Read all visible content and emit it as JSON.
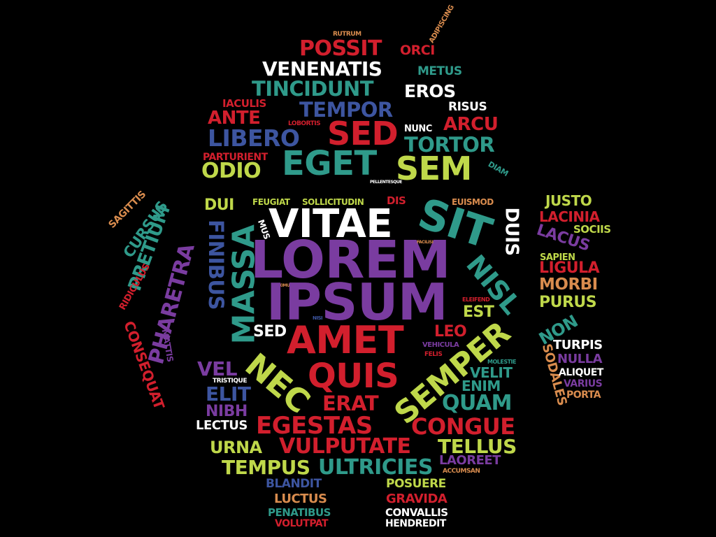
{
  "colors": {
    "red": "#d21f2d",
    "teal": "#2f9a8a",
    "white": "#ffffff",
    "blue": "#3d55a0",
    "lime": "#bfd84a",
    "purple": "#7a3ca0",
    "orange": "#d98c4e"
  },
  "words": [
    {
      "text": "ADIPISCING",
      "color": "orange"
    },
    {
      "text": "RUTRUM",
      "color": "orange"
    },
    {
      "text": "POSSIT",
      "color": "red"
    },
    {
      "text": "ORCI",
      "color": "red"
    },
    {
      "text": "VENENATIS",
      "color": "white"
    },
    {
      "text": "METUS",
      "color": "teal"
    },
    {
      "text": "TINCIDUNT",
      "color": "teal"
    },
    {
      "text": "EROS",
      "color": "white"
    },
    {
      "text": "IACULIS",
      "color": "red"
    },
    {
      "text": "TEMPOR",
      "color": "blue"
    },
    {
      "text": "RISUS",
      "color": "white"
    },
    {
      "text": "ANTE",
      "color": "red"
    },
    {
      "text": "LOBORTIS",
      "color": "red"
    },
    {
      "text": "SED",
      "color": "red"
    },
    {
      "text": "NUNC",
      "color": "white"
    },
    {
      "text": "ARCU",
      "color": "red"
    },
    {
      "text": "LIBERO",
      "color": "blue"
    },
    {
      "text": "TORTOR",
      "color": "teal"
    },
    {
      "text": "PARTURIENT",
      "color": "red"
    },
    {
      "text": "EGET",
      "color": "teal"
    },
    {
      "text": "SEM",
      "color": "lime"
    },
    {
      "text": "ODIO",
      "color": "lime"
    },
    {
      "text": "DIAM",
      "color": "teal"
    },
    {
      "text": "PELLENTESQUE",
      "color": "white"
    },
    {
      "text": "SAGITTIS",
      "color": "orange"
    },
    {
      "text": "CURSUS",
      "color": "teal"
    },
    {
      "text": "PRETIUM",
      "color": "teal"
    },
    {
      "text": "DUI",
      "color": "lime"
    },
    {
      "text": "FEUGIAT",
      "color": "lime"
    },
    {
      "text": "SOLLICITUDIN",
      "color": "lime"
    },
    {
      "text": "DIS",
      "color": "red"
    },
    {
      "text": "EUISMOD",
      "color": "orange"
    },
    {
      "text": "JUSTO",
      "color": "lime"
    },
    {
      "text": "LACINIA",
      "color": "red"
    },
    {
      "text": "VITAE",
      "color": "white"
    },
    {
      "text": "SIT",
      "color": "teal"
    },
    {
      "text": "DUIS",
      "color": "white"
    },
    {
      "text": "LACUS",
      "color": "purple"
    },
    {
      "text": "SOCIIS",
      "color": "lime"
    },
    {
      "text": "FINIBUS",
      "color": "blue"
    },
    {
      "text": "MASSA",
      "color": "teal"
    },
    {
      "text": "MUS",
      "color": "white"
    },
    {
      "text": "PHARETRA",
      "color": "purple"
    },
    {
      "text": "RIDICULUS",
      "color": "red"
    },
    {
      "text": "LOREM",
      "color": "purple"
    },
    {
      "text": "FACILISI",
      "color": "orange"
    },
    {
      "text": "NISL",
      "color": "teal"
    },
    {
      "text": "SAPIEN",
      "color": "lime"
    },
    {
      "text": "LIGULA",
      "color": "red"
    },
    {
      "text": "MORBI",
      "color": "orange"
    },
    {
      "text": "MAXIMUS",
      "color": "orange"
    },
    {
      "text": "IPSUM",
      "color": "purple"
    },
    {
      "text": "PURUS",
      "color": "lime"
    },
    {
      "text": "ELEIFEND",
      "color": "red"
    },
    {
      "text": "EST",
      "color": "lime"
    },
    {
      "text": "NISI",
      "color": "blue"
    },
    {
      "text": "NON",
      "color": "teal"
    },
    {
      "text": "SED",
      "color": "white"
    },
    {
      "text": "AMET",
      "color": "red"
    },
    {
      "text": "LEO",
      "color": "red"
    },
    {
      "text": "MATTIS",
      "color": "purple"
    },
    {
      "text": "CONSEQUAT",
      "color": "red"
    },
    {
      "text": "TURPIS",
      "color": "white"
    },
    {
      "text": "VEHICULA",
      "color": "purple"
    },
    {
      "text": "FELIS",
      "color": "red"
    },
    {
      "text": "NULLA",
      "color": "purple"
    },
    {
      "text": "SODALES",
      "color": "orange"
    },
    {
      "text": "SEMPER",
      "color": "lime"
    },
    {
      "text": "MOLESTIE",
      "color": "teal"
    },
    {
      "text": "VEL",
      "color": "purple"
    },
    {
      "text": "NEC",
      "color": "lime"
    },
    {
      "text": "QUIS",
      "color": "red"
    },
    {
      "text": "VELIT",
      "color": "teal"
    },
    {
      "text": "ALIQUET",
      "color": "white"
    },
    {
      "text": "TRISTIQUE",
      "color": "white"
    },
    {
      "text": "ENIM",
      "color": "teal"
    },
    {
      "text": "VARIUS",
      "color": "purple"
    },
    {
      "text": "ELIT",
      "color": "blue"
    },
    {
      "text": "PORTA",
      "color": "orange"
    },
    {
      "text": "ERAT",
      "color": "red"
    },
    {
      "text": "QUAM",
      "color": "teal"
    },
    {
      "text": "NIBH",
      "color": "purple"
    },
    {
      "text": "LECTUS",
      "color": "white"
    },
    {
      "text": "EGESTAS",
      "color": "red"
    },
    {
      "text": "CONGUE",
      "color": "red"
    },
    {
      "text": "URNA",
      "color": "lime"
    },
    {
      "text": "VULPUTATE",
      "color": "red"
    },
    {
      "text": "TELLUS",
      "color": "lime"
    },
    {
      "text": "TEMPUS",
      "color": "lime"
    },
    {
      "text": "ULTRICIES",
      "color": "teal"
    },
    {
      "text": "LAOREET",
      "color": "purple"
    },
    {
      "text": "ACCUMSAN",
      "color": "orange"
    },
    {
      "text": "BLANDIT",
      "color": "blue"
    },
    {
      "text": "POSUERE",
      "color": "lime"
    },
    {
      "text": "LUCTUS",
      "color": "orange"
    },
    {
      "text": "GRAVIDA",
      "color": "red"
    },
    {
      "text": "PENATIBUS",
      "color": "teal"
    },
    {
      "text": "CONVALLIS",
      "color": "white"
    },
    {
      "text": "VOLUTPAT",
      "color": "red"
    },
    {
      "text": "HENDREDIT",
      "color": "white"
    }
  ]
}
